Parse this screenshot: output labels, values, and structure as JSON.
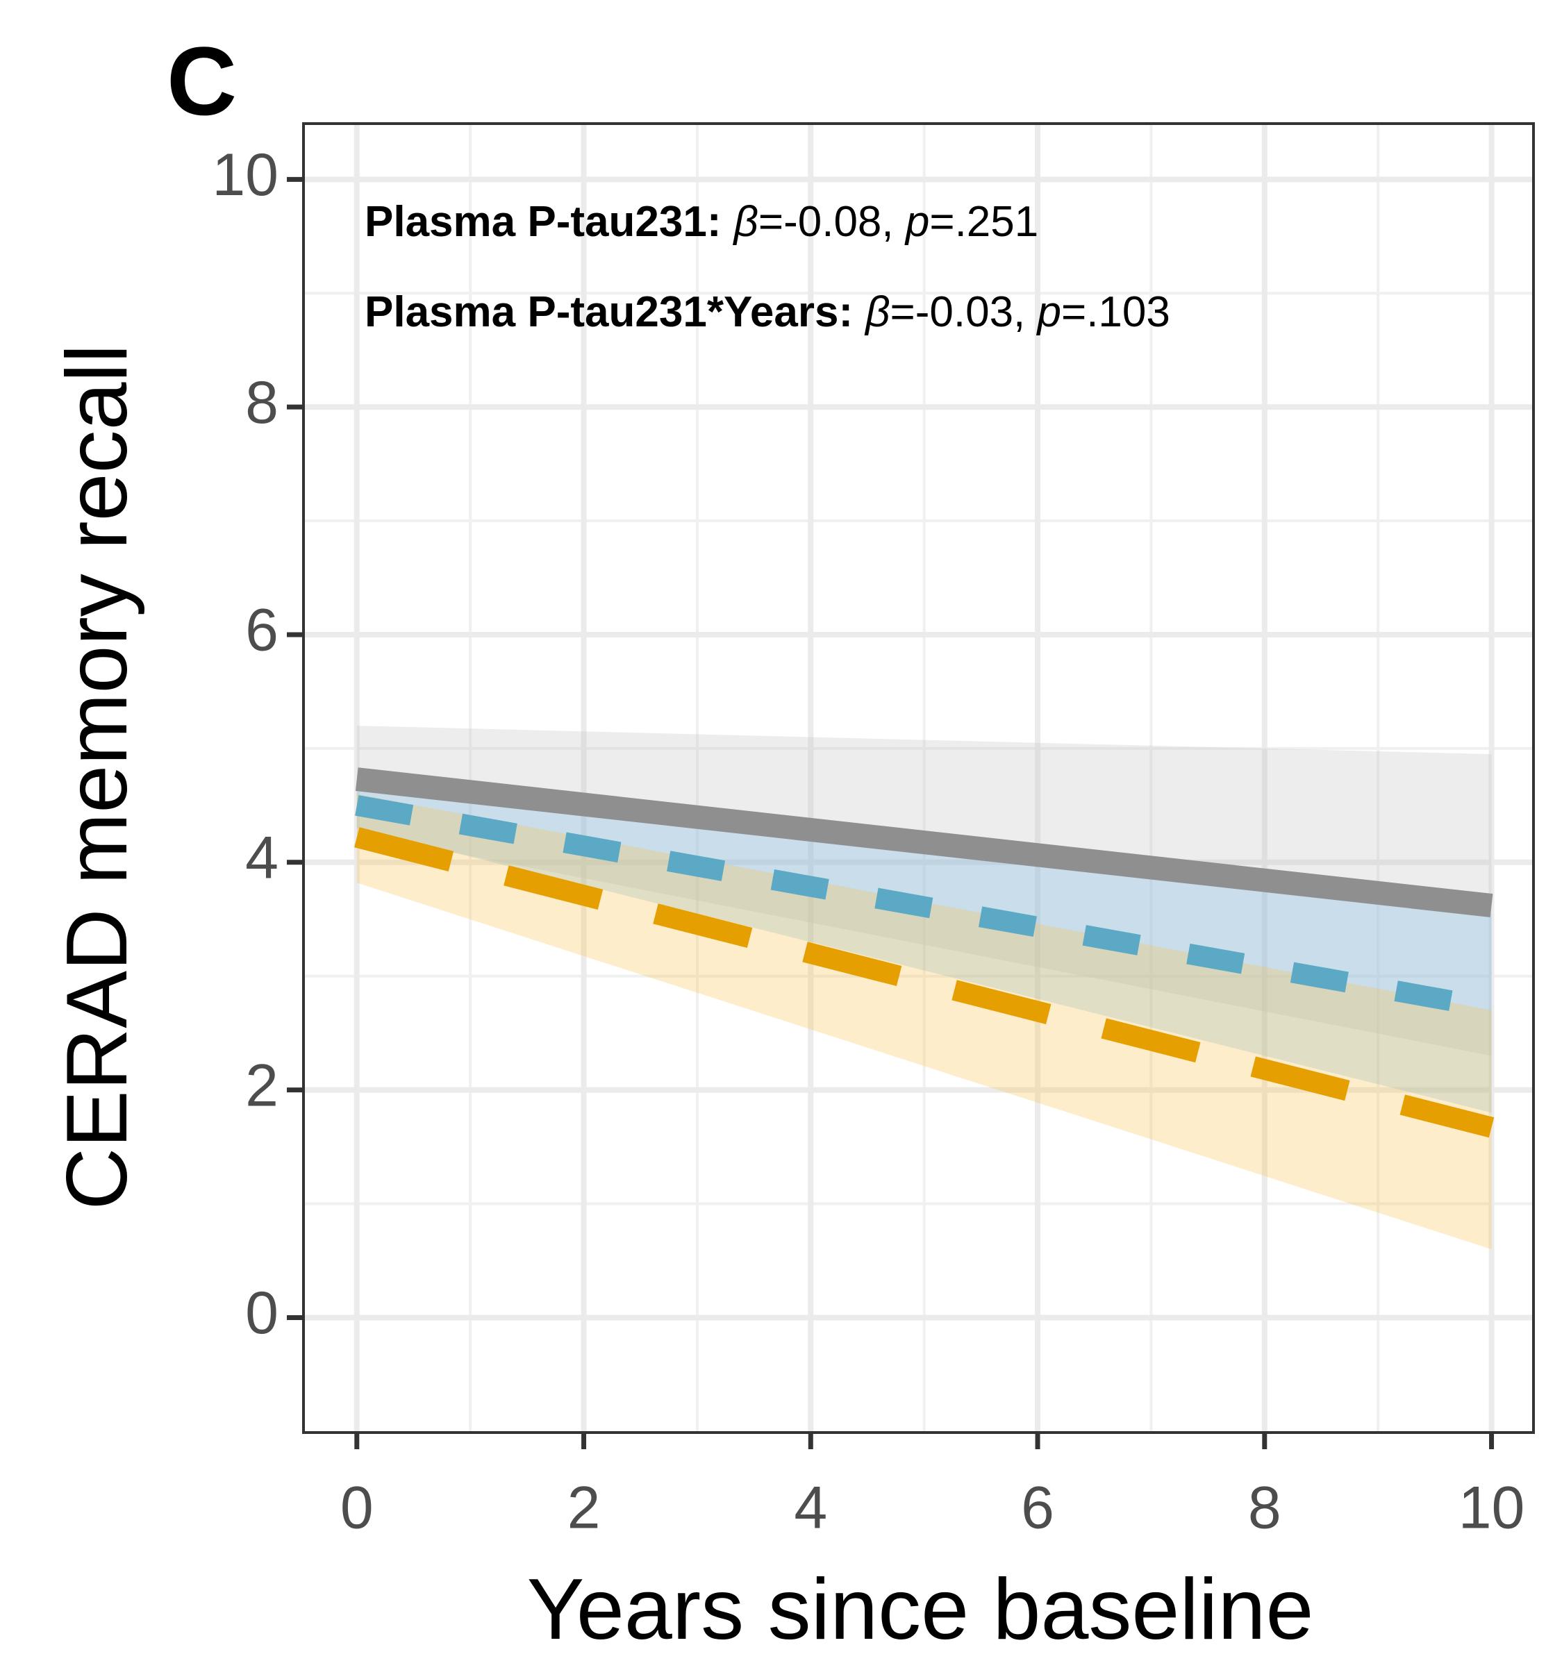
{
  "chart_data": {
    "type": "line",
    "panel_label": "C",
    "x_label": "Years since baseline",
    "y_label": "CERAD memory recall",
    "x": [
      0,
      10
    ],
    "xlim": [
      -0.47,
      10.37
    ],
    "ylim": [
      -1.01,
      10.49
    ],
    "xticks": [
      0,
      2,
      4,
      6,
      8,
      10
    ],
    "yticks": [
      0,
      2,
      4,
      6,
      8,
      10
    ],
    "grid": true,
    "series": [
      {
        "color": "#8f8f8f",
        "ribbon_color": "#c4c4c4",
        "dash": "solid",
        "values": [
          4.73,
          3.62
        ],
        "lower": [
          4.25,
          2.3
        ],
        "upper": [
          5.2,
          4.95
        ]
      },
      {
        "color": "#5ba9c4",
        "ribbon_color": "#78b8e6",
        "dash": "short",
        "values": [
          4.5,
          2.72
        ],
        "lower": [
          4.3,
          1.8
        ],
        "upper": [
          4.7,
          3.55
        ]
      },
      {
        "color": "#e69f00",
        "ribbon_color": "#f7c54f",
        "dash": "long",
        "values": [
          4.22,
          1.67
        ],
        "lower": [
          3.82,
          0.6
        ],
        "upper": [
          4.6,
          2.7
        ]
      }
    ],
    "annotations": [
      {
        "label": "Plasma P-tau231:",
        "parts": [
          "β",
          "=-0.08, ",
          "p",
          "=.251"
        ]
      },
      {
        "label": "Plasma P-tau231*Years:",
        "parts": [
          "β",
          "=-0.03, ",
          "p",
          "=.103"
        ]
      }
    ]
  }
}
